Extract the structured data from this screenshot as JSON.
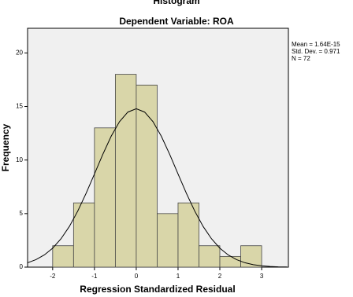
{
  "chart_data": {
    "type": "histogram",
    "title": "Histogram",
    "subtitle": "Dependent Variable: ROA",
    "x_label": "Regression Standardized Residual",
    "y_label": "Frequency",
    "bins": [
      -2,
      -1.5,
      -1,
      -0.5,
      0,
      0.5,
      1,
      1.5,
      2,
      2.5,
      3
    ],
    "counts": [
      2,
      6,
      13,
      18,
      17,
      5,
      6,
      2,
      1,
      2
    ],
    "color": "#d9d6a9",
    "stats": [
      "Mean = 1.64E-15",
      "Std. Dev. = 0.971",
      "N = 72"
    ],
    "curve": {
      "x": [
        -2.6,
        -2.4,
        -2.2,
        -2.0,
        -1.8,
        -1.6,
        -1.4,
        -1.2,
        -1.0,
        -0.8,
        -0.6,
        -0.4,
        -0.2,
        0,
        0.2,
        0.4,
        0.6,
        0.8,
        1.0,
        1.2,
        1.4,
        1.6,
        1.8,
        2.0,
        2.2,
        2.4,
        2.6,
        2.8,
        3.0,
        3.2,
        3.4,
        3.6
      ],
      "y": [
        0.41,
        0.7,
        1.14,
        1.77,
        2.65,
        3.8,
        5.23,
        6.89,
        8.7,
        10.53,
        12.22,
        13.59,
        14.48,
        14.79,
        14.48,
        13.59,
        12.22,
        10.53,
        8.7,
        6.89,
        5.23,
        3.8,
        2.65,
        1.77,
        1.14,
        0.7,
        0.41,
        0.23,
        0.13,
        0.06,
        0.03,
        0.02
      ]
    },
    "xlim": [
      -2.6,
      3.64
    ],
    "ylim": [
      0,
      22.3
    ],
    "xticks": [
      -2,
      -1,
      0,
      1,
      2,
      3
    ],
    "yticks": [
      0,
      5,
      10,
      15,
      20
    ]
  }
}
